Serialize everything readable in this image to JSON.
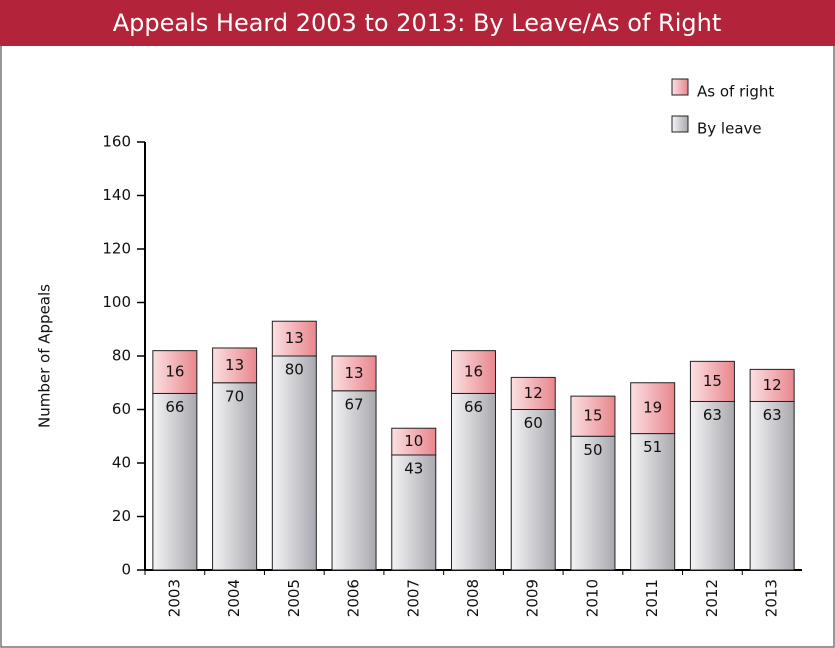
{
  "chart_data": {
    "type": "stacked_bar",
    "title": "Appeals Heard 2003 to 2013: By Leave/As of Right",
    "y_label": "Number of Appeals",
    "categories": [
      "2003",
      "2004",
      "2005",
      "2006",
      "2007",
      "2008",
      "2009",
      "2010",
      "2011",
      "2012",
      "2013"
    ],
    "series": [
      {
        "name": "By leave",
        "color": "#c4c4c8",
        "values": [
          66,
          70,
          80,
          67,
          43,
          66,
          60,
          50,
          51,
          63,
          63
        ]
      },
      {
        "name": "As of right",
        "color": "#f0a3a8",
        "values": [
          16,
          13,
          13,
          13,
          10,
          16,
          12,
          15,
          19,
          15,
          12
        ]
      }
    ],
    "ylim": [
      0,
      160
    ],
    "yticks": [
      0,
      20,
      40,
      60,
      80,
      100,
      120,
      140,
      160
    ],
    "legend": "top-right"
  }
}
